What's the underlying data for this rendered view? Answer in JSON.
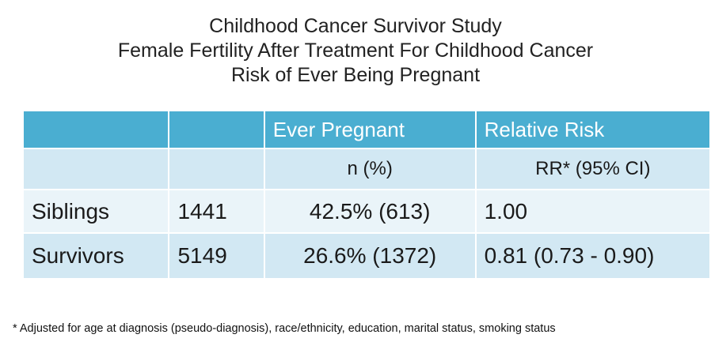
{
  "title": {
    "line1": "Childhood Cancer Survivor Study",
    "line2": "Female Fertility After Treatment For Childhood Cancer",
    "line3": "Risk of Ever Being Pregnant"
  },
  "table": {
    "header": [
      "",
      "",
      "Ever Pregnant",
      "Relative Risk"
    ],
    "subheader": [
      "",
      "",
      "n (%)",
      "RR* (95% CI)"
    ],
    "rows": [
      [
        "Siblings",
        "1441",
        "42.5% (613)",
        "1.00"
      ],
      [
        "Survivors",
        "5149",
        "26.6% (1372)",
        "0.81 (0.73 - 0.90)"
      ]
    ]
  },
  "footnote": "* Adjusted for age at diagnosis (pseudo-diagnosis), race/ethnicity, education, marital status, smoking status",
  "colors": {
    "header_bg": "#4aaed1",
    "band_dark": "#d2e8f3",
    "band_light": "#eaf4f9"
  }
}
